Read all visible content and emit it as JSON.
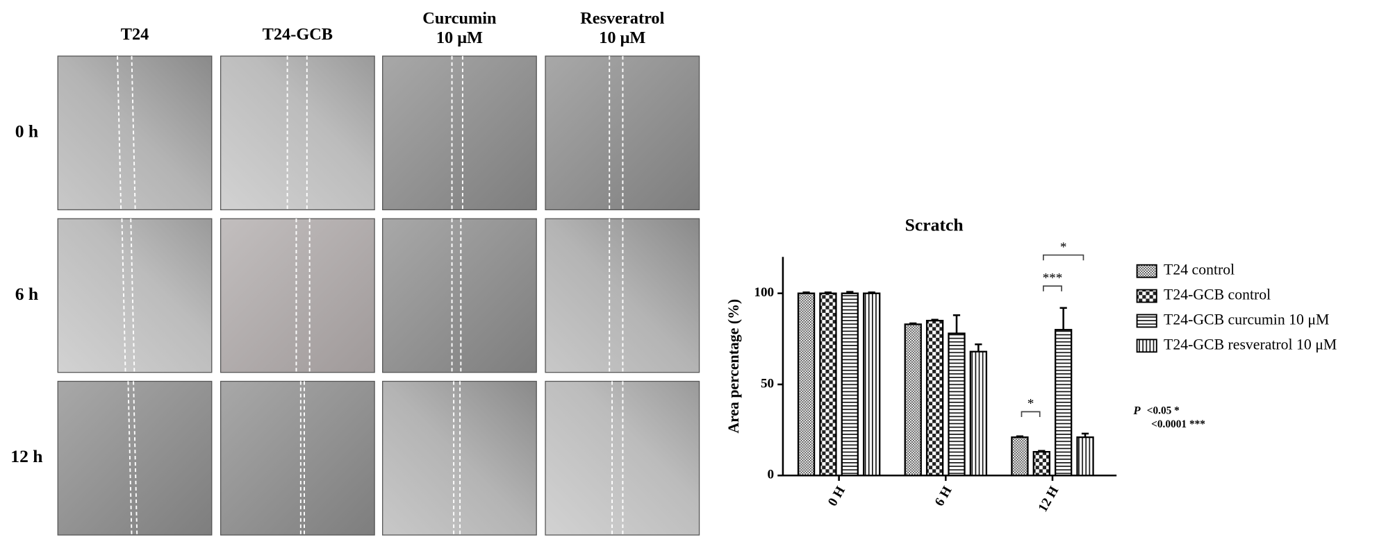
{
  "microscopy": {
    "columns": [
      [
        "T24"
      ],
      [
        "T24-GCB"
      ],
      [
        "Curcumin",
        "10 μM"
      ],
      [
        "Resveratrol",
        "10 μM"
      ]
    ],
    "rows": [
      "0 h",
      "6 h",
      "12 h"
    ]
  },
  "chart_data": {
    "type": "bar",
    "title": "Scratch",
    "y_label": "Area percentage (%)",
    "categories": [
      "0 H",
      "6 H",
      "12 H"
    ],
    "series": [
      {
        "name": "T24 control",
        "color": "#000000",
        "pattern": "dense",
        "values": [
          100,
          83,
          21
        ],
        "errors": [
          0.5,
          0.5,
          0.5
        ]
      },
      {
        "name": "T24-GCB control",
        "color": "#000000",
        "pattern": "checker",
        "values": [
          100,
          85,
          13
        ],
        "errors": [
          0.5,
          0.5,
          0.5
        ]
      },
      {
        "name": "T24-GCB curcumin 10 μM",
        "color": "#000000",
        "pattern": "horizontal",
        "values": [
          100,
          78,
          80
        ],
        "errors": [
          0.8,
          10,
          12
        ]
      },
      {
        "name": "T24-GCB resveratrol 10 μM",
        "color": "#000000",
        "pattern": "vertical",
        "values": [
          100,
          68,
          21
        ],
        "errors": [
          0.5,
          4,
          2
        ]
      }
    ],
    "ylim": [
      0,
      120
    ],
    "yticks": [
      0,
      50,
      100
    ],
    "comparisons": [
      {
        "label": "*",
        "category": 2,
        "between": [
          0,
          1
        ],
        "y": 35
      },
      {
        "label": "***",
        "category": 2,
        "between": [
          1,
          2
        ],
        "y": 104
      },
      {
        "label": "*",
        "category": 2,
        "between": [
          1,
          3
        ],
        "y": 121
      }
    ],
    "p_note": {
      "symbol": "P",
      "lines": [
        "<0.05 *",
        "<0.0001 ***"
      ]
    }
  }
}
